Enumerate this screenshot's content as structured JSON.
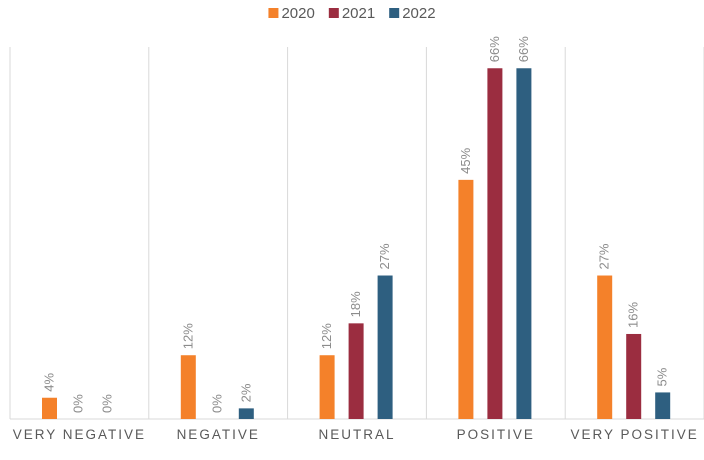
{
  "chart_data": {
    "type": "bar",
    "categories": [
      "VERY NEGATIVE",
      "NEGATIVE",
      "NEUTRAL",
      "POSITIVE",
      "VERY POSITIVE"
    ],
    "series": [
      {
        "name": "2020",
        "color": "#f4812a",
        "values": [
          4,
          12,
          12,
          45,
          27
        ],
        "value_labels": [
          "4%",
          "12%",
          "12%",
          "45%",
          "27%"
        ]
      },
      {
        "name": "2021",
        "color": "#9b2d40",
        "values": [
          0,
          0,
          18,
          66,
          16
        ],
        "value_labels": [
          "0%",
          "0%",
          "18%",
          "66%",
          "16%"
        ]
      },
      {
        "name": "2022",
        "color": "#2e5f80",
        "values": [
          0,
          2,
          27,
          66,
          5
        ],
        "value_labels": [
          "0%",
          "2%",
          "27%",
          "66%",
          "5%"
        ]
      }
    ],
    "ylim": [
      0,
      70
    ],
    "legend": "top"
  }
}
